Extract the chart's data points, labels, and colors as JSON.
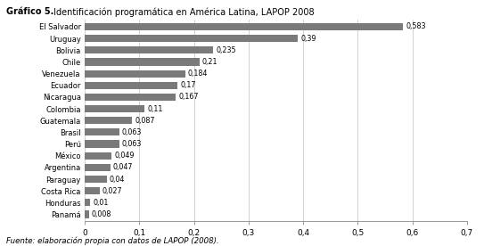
{
  "title_bold": "Gráfico 5.",
  "title_regular": " Identificación programática en América Latina, LAPOP 2008",
  "categories": [
    "El Salvador",
    "Uruguay",
    "Bolivia",
    "Chile",
    "Venezuela",
    "Ecuador",
    "Nicaragua",
    "Colombia",
    "Guatemala",
    "Brasil",
    "Perú",
    "México",
    "Argentina",
    "Paraguay",
    "Costa Rica",
    "Honduras",
    "Panamá"
  ],
  "values": [
    0.583,
    0.39,
    0.235,
    0.21,
    0.184,
    0.17,
    0.167,
    0.11,
    0.087,
    0.063,
    0.063,
    0.049,
    0.047,
    0.04,
    0.027,
    0.01,
    0.008
  ],
  "labels": [
    "0,583",
    "0,39",
    "0,235",
    "0,21",
    "0,184",
    "0,17",
    "0,167",
    "0,11",
    "0,087",
    "0,063",
    "0,063",
    "0,049",
    "0,047",
    "0,04",
    "0,027",
    "0,01",
    "0,008"
  ],
  "bar_color": "#7a7a7a",
  "xlim": [
    0,
    0.7
  ],
  "xticks": [
    0,
    0.1,
    0.2,
    0.3,
    0.4,
    0.5,
    0.6,
    0.7
  ],
  "xtick_labels": [
    "0",
    "0,1",
    "0,2",
    "0,3",
    "0,4",
    "0,5",
    "0,6",
    "0,7"
  ],
  "footnote": "Fuente: elaboración propia con datos de LAPOP (2008).",
  "background_color": "#ffffff"
}
